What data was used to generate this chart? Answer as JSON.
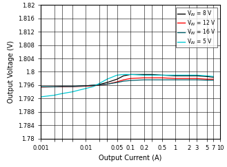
{
  "title": "",
  "xlabel": "Output Current (A)",
  "ylabel": "Output Voltage (V)",
  "ylim": [
    1.78,
    1.82
  ],
  "xlim": [
    0.001,
    10
  ],
  "yticks": [
    1.78,
    1.784,
    1.788,
    1.792,
    1.796,
    1.8,
    1.804,
    1.808,
    1.812,
    1.816,
    1.82
  ],
  "ytick_labels": [
    "1.78",
    "1.784",
    "1.788",
    "1.792",
    "1.796",
    "1.8",
    "1.804",
    "1.808",
    "1.812",
    "1.816",
    "1.82"
  ],
  "xticks": [
    0.001,
    0.002,
    0.003,
    0.005,
    0.01,
    0.02,
    0.03,
    0.05,
    0.1,
    0.2,
    0.3,
    0.5,
    1,
    2,
    3,
    5,
    7,
    10
  ],
  "xtick_labels": [
    "0.001",
    "",
    "",
    "",
    "0.01",
    "",
    "",
    "0.05",
    "0.1",
    "0.2",
    "",
    "0.5",
    "1",
    "2",
    "3",
    "5",
    "7",
    "10"
  ],
  "series": [
    {
      "label": "V$_{IN}$ = 8 V",
      "color": "#000000",
      "x": [
        0.001,
        0.002,
        0.003,
        0.005,
        0.007,
        0.01,
        0.015,
        0.02,
        0.03,
        0.05,
        0.07,
        0.1,
        0.2,
        0.3,
        0.5,
        1,
        2,
        3,
        5,
        7
      ],
      "y": [
        1.7955,
        1.7955,
        1.7956,
        1.7956,
        1.7957,
        1.7958,
        1.796,
        1.7962,
        1.7968,
        1.7978,
        1.7988,
        1.7992,
        1.7992,
        1.7992,
        1.799,
        1.7988,
        1.7988,
        1.7988,
        1.7986,
        1.7984
      ]
    },
    {
      "label": "V$_{IN}$ = 12 V",
      "color": "#ff0000",
      "x": [
        0.001,
        0.002,
        0.003,
        0.005,
        0.007,
        0.01,
        0.015,
        0.02,
        0.03,
        0.05,
        0.07,
        0.1,
        0.2,
        0.3,
        0.5,
        1,
        2,
        3,
        5,
        7
      ],
      "y": [
        1.7954,
        1.7955,
        1.7955,
        1.7956,
        1.7956,
        1.7957,
        1.7958,
        1.796,
        1.7963,
        1.797,
        1.7976,
        1.798,
        1.7982,
        1.7982,
        1.7982,
        1.798,
        1.798,
        1.798,
        1.7978,
        1.7978
      ]
    },
    {
      "label": "V$_{IN}$ = 16 V",
      "color": "#005f6b",
      "x": [
        0.001,
        0.002,
        0.003,
        0.005,
        0.007,
        0.01,
        0.015,
        0.02,
        0.03,
        0.05,
        0.07,
        0.1,
        0.2,
        0.3,
        0.5,
        1,
        2,
        3,
        5,
        7
      ],
      "y": [
        1.7955,
        1.7955,
        1.7956,
        1.7956,
        1.7957,
        1.7958,
        1.796,
        1.7961,
        1.7963,
        1.7968,
        1.7972,
        1.7974,
        1.7976,
        1.7976,
        1.7976,
        1.7976,
        1.7976,
        1.7976,
        1.7975,
        1.7975
      ]
    },
    {
      "label": "V$_{IN}$ = 5 V",
      "color": "#00c8d2",
      "x": [
        0.001,
        0.002,
        0.003,
        0.005,
        0.007,
        0.01,
        0.015,
        0.02,
        0.03,
        0.05,
        0.07,
        0.1,
        0.2,
        0.3,
        0.5,
        1,
        2,
        3,
        5,
        7
      ],
      "y": [
        1.7925,
        1.793,
        1.7935,
        1.794,
        1.7945,
        1.795,
        1.7956,
        1.7965,
        1.7978,
        1.799,
        1.7992,
        1.7992,
        1.799,
        1.799,
        1.799,
        1.799,
        1.799,
        1.799,
        1.7988,
        1.7986
      ]
    }
  ],
  "legend_loc": "upper right",
  "grid_color": "#000000",
  "background_color": "#ffffff",
  "legend_colors": [
    "#000000",
    "#ff0000",
    "#005f6b",
    "#00c8d2"
  ]
}
